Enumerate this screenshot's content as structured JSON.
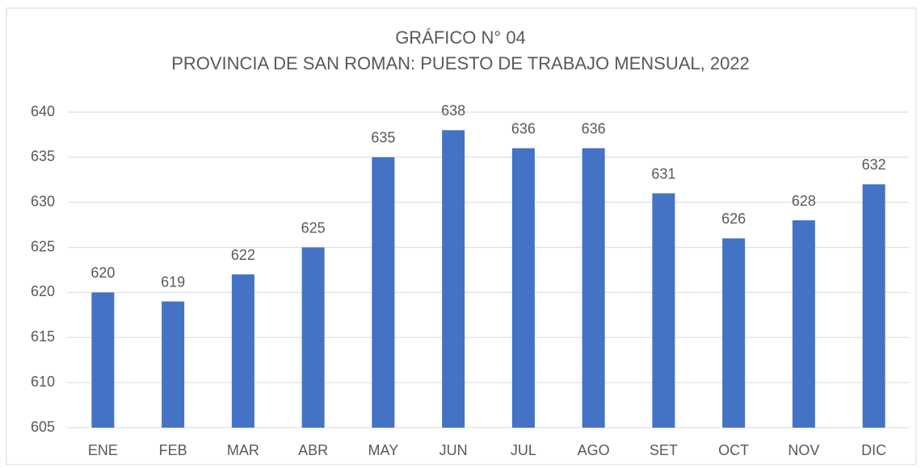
{
  "chart_data": {
    "type": "bar",
    "title": "GRÁFICO N° 04",
    "subtitle": "PROVINCIA DE SAN ROMAN: PUESTO DE TRABAJO MENSUAL, 2022",
    "categories": [
      "ENE",
      "FEB",
      "MAR",
      "ABR",
      "MAY",
      "JUN",
      "JUL",
      "AGO",
      "SET",
      "OCT",
      "NOV",
      "DIC"
    ],
    "values": [
      620,
      619,
      622,
      625,
      635,
      638,
      636,
      636,
      631,
      626,
      628,
      632
    ],
    "color": "#4472c4",
    "ylim": [
      605,
      640
    ],
    "yticks": [
      605,
      610,
      615,
      620,
      625,
      630,
      635,
      640
    ],
    "grid": true
  }
}
